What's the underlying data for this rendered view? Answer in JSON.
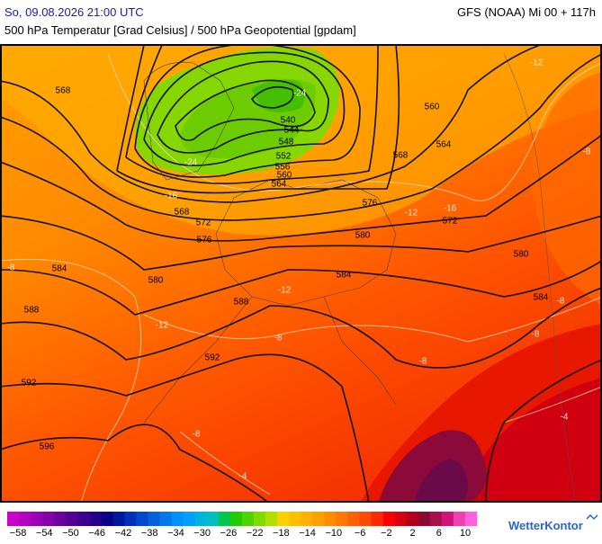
{
  "header": {
    "valid_time": "So, 09.08.2026 21:00 UTC",
    "model_run": "GFS (NOAA) Mi 00 + 117h",
    "subtitle": "500 hPa Temperatur [Grad Celsius] / 500 hPa Geopotential [gpdam]"
  },
  "map": {
    "height_labels": [
      "568",
      "540",
      "544",
      "548",
      "552",
      "556",
      "560",
      "564",
      "568",
      "572",
      "576",
      "560",
      "564",
      "568",
      "576",
      "572",
      "580",
      "580",
      "584",
      "580",
      "584",
      "584",
      "588",
      "588",
      "592",
      "592",
      "596"
    ],
    "temperature_labels": [
      "-24",
      "-24",
      "-16",
      "-16",
      "-12",
      "-12",
      "-8",
      "-8",
      "-8",
      "-8",
      "-12",
      "-8",
      "-8",
      "-4",
      "-4",
      "-8",
      "-12"
    ]
  },
  "colorbar": {
    "labels": [
      "−58",
      "−54",
      "−50",
      "−46",
      "−42",
      "−38",
      "−34",
      "−30",
      "−26",
      "−22",
      "−18",
      "−14",
      "−10",
      "−6",
      "−2",
      "2",
      "6",
      "10"
    ]
  },
  "brand": "WetterKontor"
}
